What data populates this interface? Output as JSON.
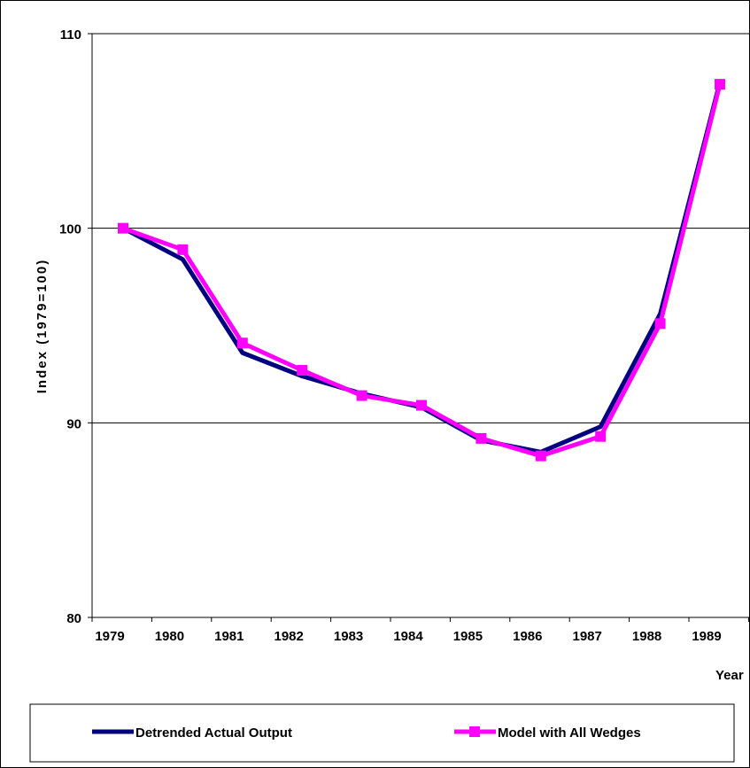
{
  "chart_data": {
    "type": "line",
    "categories": [
      "1979",
      "1980",
      "1981",
      "1982",
      "1983",
      "1984",
      "1985",
      "1986",
      "1987",
      "1988",
      "1989"
    ],
    "series": [
      {
        "name": "Detrended Actual Output",
        "values": [
          100.0,
          98.4,
          93.6,
          92.4,
          91.5,
          90.8,
          89.1,
          88.5,
          89.8,
          95.6,
          107.5
        ],
        "color": "#000080",
        "marker": "none"
      },
      {
        "name": "Model with All Wedges",
        "values": [
          100.0,
          98.9,
          94.1,
          92.7,
          91.4,
          90.9,
          89.2,
          88.3,
          89.3,
          95.1,
          107.4
        ],
        "color": "#ff00ff",
        "marker": "square"
      }
    ],
    "xlabel": "Year",
    "ylabel": "Index (1979=100)",
    "ylim": [
      80,
      110
    ],
    "yticks": [
      "80",
      "90",
      "100",
      "110"
    ],
    "grid": true,
    "legend_placement": "bottom"
  }
}
